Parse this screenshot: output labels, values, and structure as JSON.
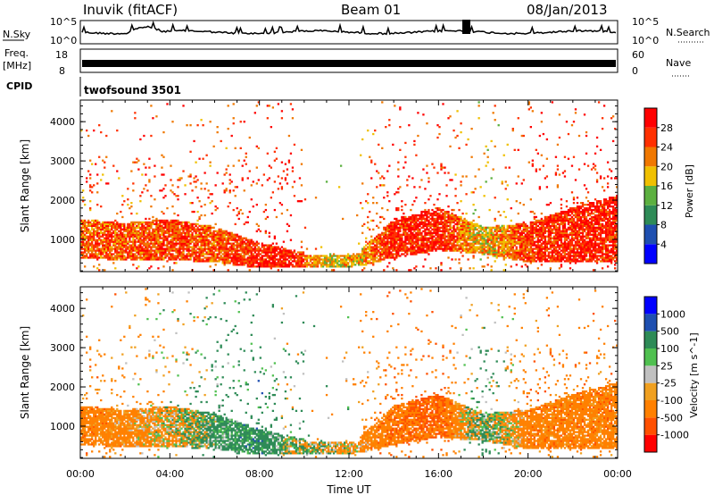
{
  "header": {
    "station": "Inuvik (fitACF)",
    "beam": "Beam 01",
    "date": "08/Jan/2013"
  },
  "noise_panel": {
    "left_label": "N.Sky",
    "right_label": "N.Search",
    "left_ticks": [
      "10^5",
      "10^0"
    ],
    "right_ticks": [
      "10^5",
      "10^0"
    ]
  },
  "freq_panel": {
    "left_label_1": "Freq.",
    "left_label_2": "[MHz]",
    "right_label": "Nave",
    "left_ticks": [
      "18",
      "8"
    ],
    "right_ticks": [
      "60",
      "0"
    ]
  },
  "cpid_panel": {
    "label": "CPID",
    "value": "twofsound 3501"
  },
  "colors": {
    "power_scale": [
      "#0000ff",
      "#1e4fb0",
      "#2e8b57",
      "#5cb040",
      "#f0c000",
      "#f07800",
      "#ff3000",
      "#ff0000"
    ],
    "velocity_scale": [
      "#ff0000",
      "#ff5000",
      "#ff8000",
      "#f0a020",
      "#c0c0c0",
      "#50c050",
      "#2e8b57",
      "#1e4fb0",
      "#0000ff"
    ]
  },
  "chart_data": [
    {
      "type": "heatmap",
      "title": "Power",
      "ylabel": "Slant Range [km]",
      "xlabel": "Time UT",
      "x_tick_labels": [
        "00:00",
        "04:00",
        "08:00",
        "12:00",
        "16:00",
        "20:00",
        "00:00"
      ],
      "xlim_hours": [
        0,
        24
      ],
      "ylim": [
        180,
        4550
      ],
      "y_ticks": [
        1000,
        2000,
        3000,
        4000
      ],
      "colorbar": {
        "label": "Power [dB]",
        "range": [
          0,
          32
        ],
        "ticks": [
          4,
          8,
          12,
          16,
          20,
          24,
          28
        ]
      },
      "profile": [
        {
          "t": 0,
          "lo": 500,
          "hi": 1500,
          "v": 24
        },
        {
          "t": 2,
          "lo": 450,
          "hi": 1400,
          "v": 24
        },
        {
          "t": 4,
          "lo": 450,
          "hi": 1500,
          "v": 26
        },
        {
          "t": 6,
          "lo": 400,
          "hi": 1300,
          "v": 24
        },
        {
          "t": 8,
          "lo": 250,
          "hi": 900,
          "v": 28
        },
        {
          "t": 9.5,
          "lo": 250,
          "hi": 700,
          "v": 28
        },
        {
          "t": 11,
          "lo": 250,
          "hi": 600,
          "v": 18
        },
        {
          "t": 12.5,
          "lo": 300,
          "hi": 700,
          "v": 20
        },
        {
          "t": 14,
          "lo": 500,
          "hi": 1500,
          "v": 28
        },
        {
          "t": 16,
          "lo": 700,
          "hi": 1800,
          "v": 28
        },
        {
          "t": 18,
          "lo": 600,
          "hi": 1300,
          "v": 18
        },
        {
          "t": 20,
          "lo": 400,
          "hi": 1400,
          "v": 26
        },
        {
          "t": 22,
          "lo": 400,
          "hi": 1800,
          "v": 28
        },
        {
          "t": 24,
          "lo": 400,
          "hi": 2100,
          "v": 28
        }
      ]
    },
    {
      "type": "heatmap",
      "title": "Velocity",
      "ylabel": "Slant Range [km]",
      "xlabel": "Time UT",
      "x_tick_labels": [
        "00:00",
        "04:00",
        "08:00",
        "12:00",
        "16:00",
        "20:00",
        "00:00"
      ],
      "xlim_hours": [
        0,
        24
      ],
      "ylim": [
        180,
        4550
      ],
      "y_ticks": [
        1000,
        2000,
        3000,
        4000
      ],
      "colorbar": {
        "label": "Velocity [m s^-1]",
        "tick_labels": [
          "1000",
          "500",
          "100",
          "25",
          "-25",
          "-100",
          "-500",
          "-1000"
        ]
      },
      "profile": [
        {
          "t": 0,
          "lo": 500,
          "hi": 1500,
          "v": -300
        },
        {
          "t": 2,
          "lo": 450,
          "hi": 1400,
          "v": -250
        },
        {
          "t": 4,
          "lo": 450,
          "hi": 1500,
          "v": -100
        },
        {
          "t": 6,
          "lo": 400,
          "hi": 1300,
          "v": 200
        },
        {
          "t": 8,
          "lo": 250,
          "hi": 900,
          "v": 300
        },
        {
          "t": 9.5,
          "lo": 250,
          "hi": 700,
          "v": 60
        },
        {
          "t": 11,
          "lo": 250,
          "hi": 600,
          "v": 0
        },
        {
          "t": 12.5,
          "lo": 300,
          "hi": 700,
          "v": -200
        },
        {
          "t": 14,
          "lo": 500,
          "hi": 1500,
          "v": -400
        },
        {
          "t": 16,
          "lo": 700,
          "hi": 1800,
          "v": -500
        },
        {
          "t": 18,
          "lo": 600,
          "hi": 1300,
          "v": 150
        },
        {
          "t": 20,
          "lo": 400,
          "hi": 1400,
          "v": -300
        },
        {
          "t": 22,
          "lo": 400,
          "hi": 1800,
          "v": -300
        },
        {
          "t": 24,
          "lo": 400,
          "hi": 2100,
          "v": -300
        }
      ]
    }
  ]
}
